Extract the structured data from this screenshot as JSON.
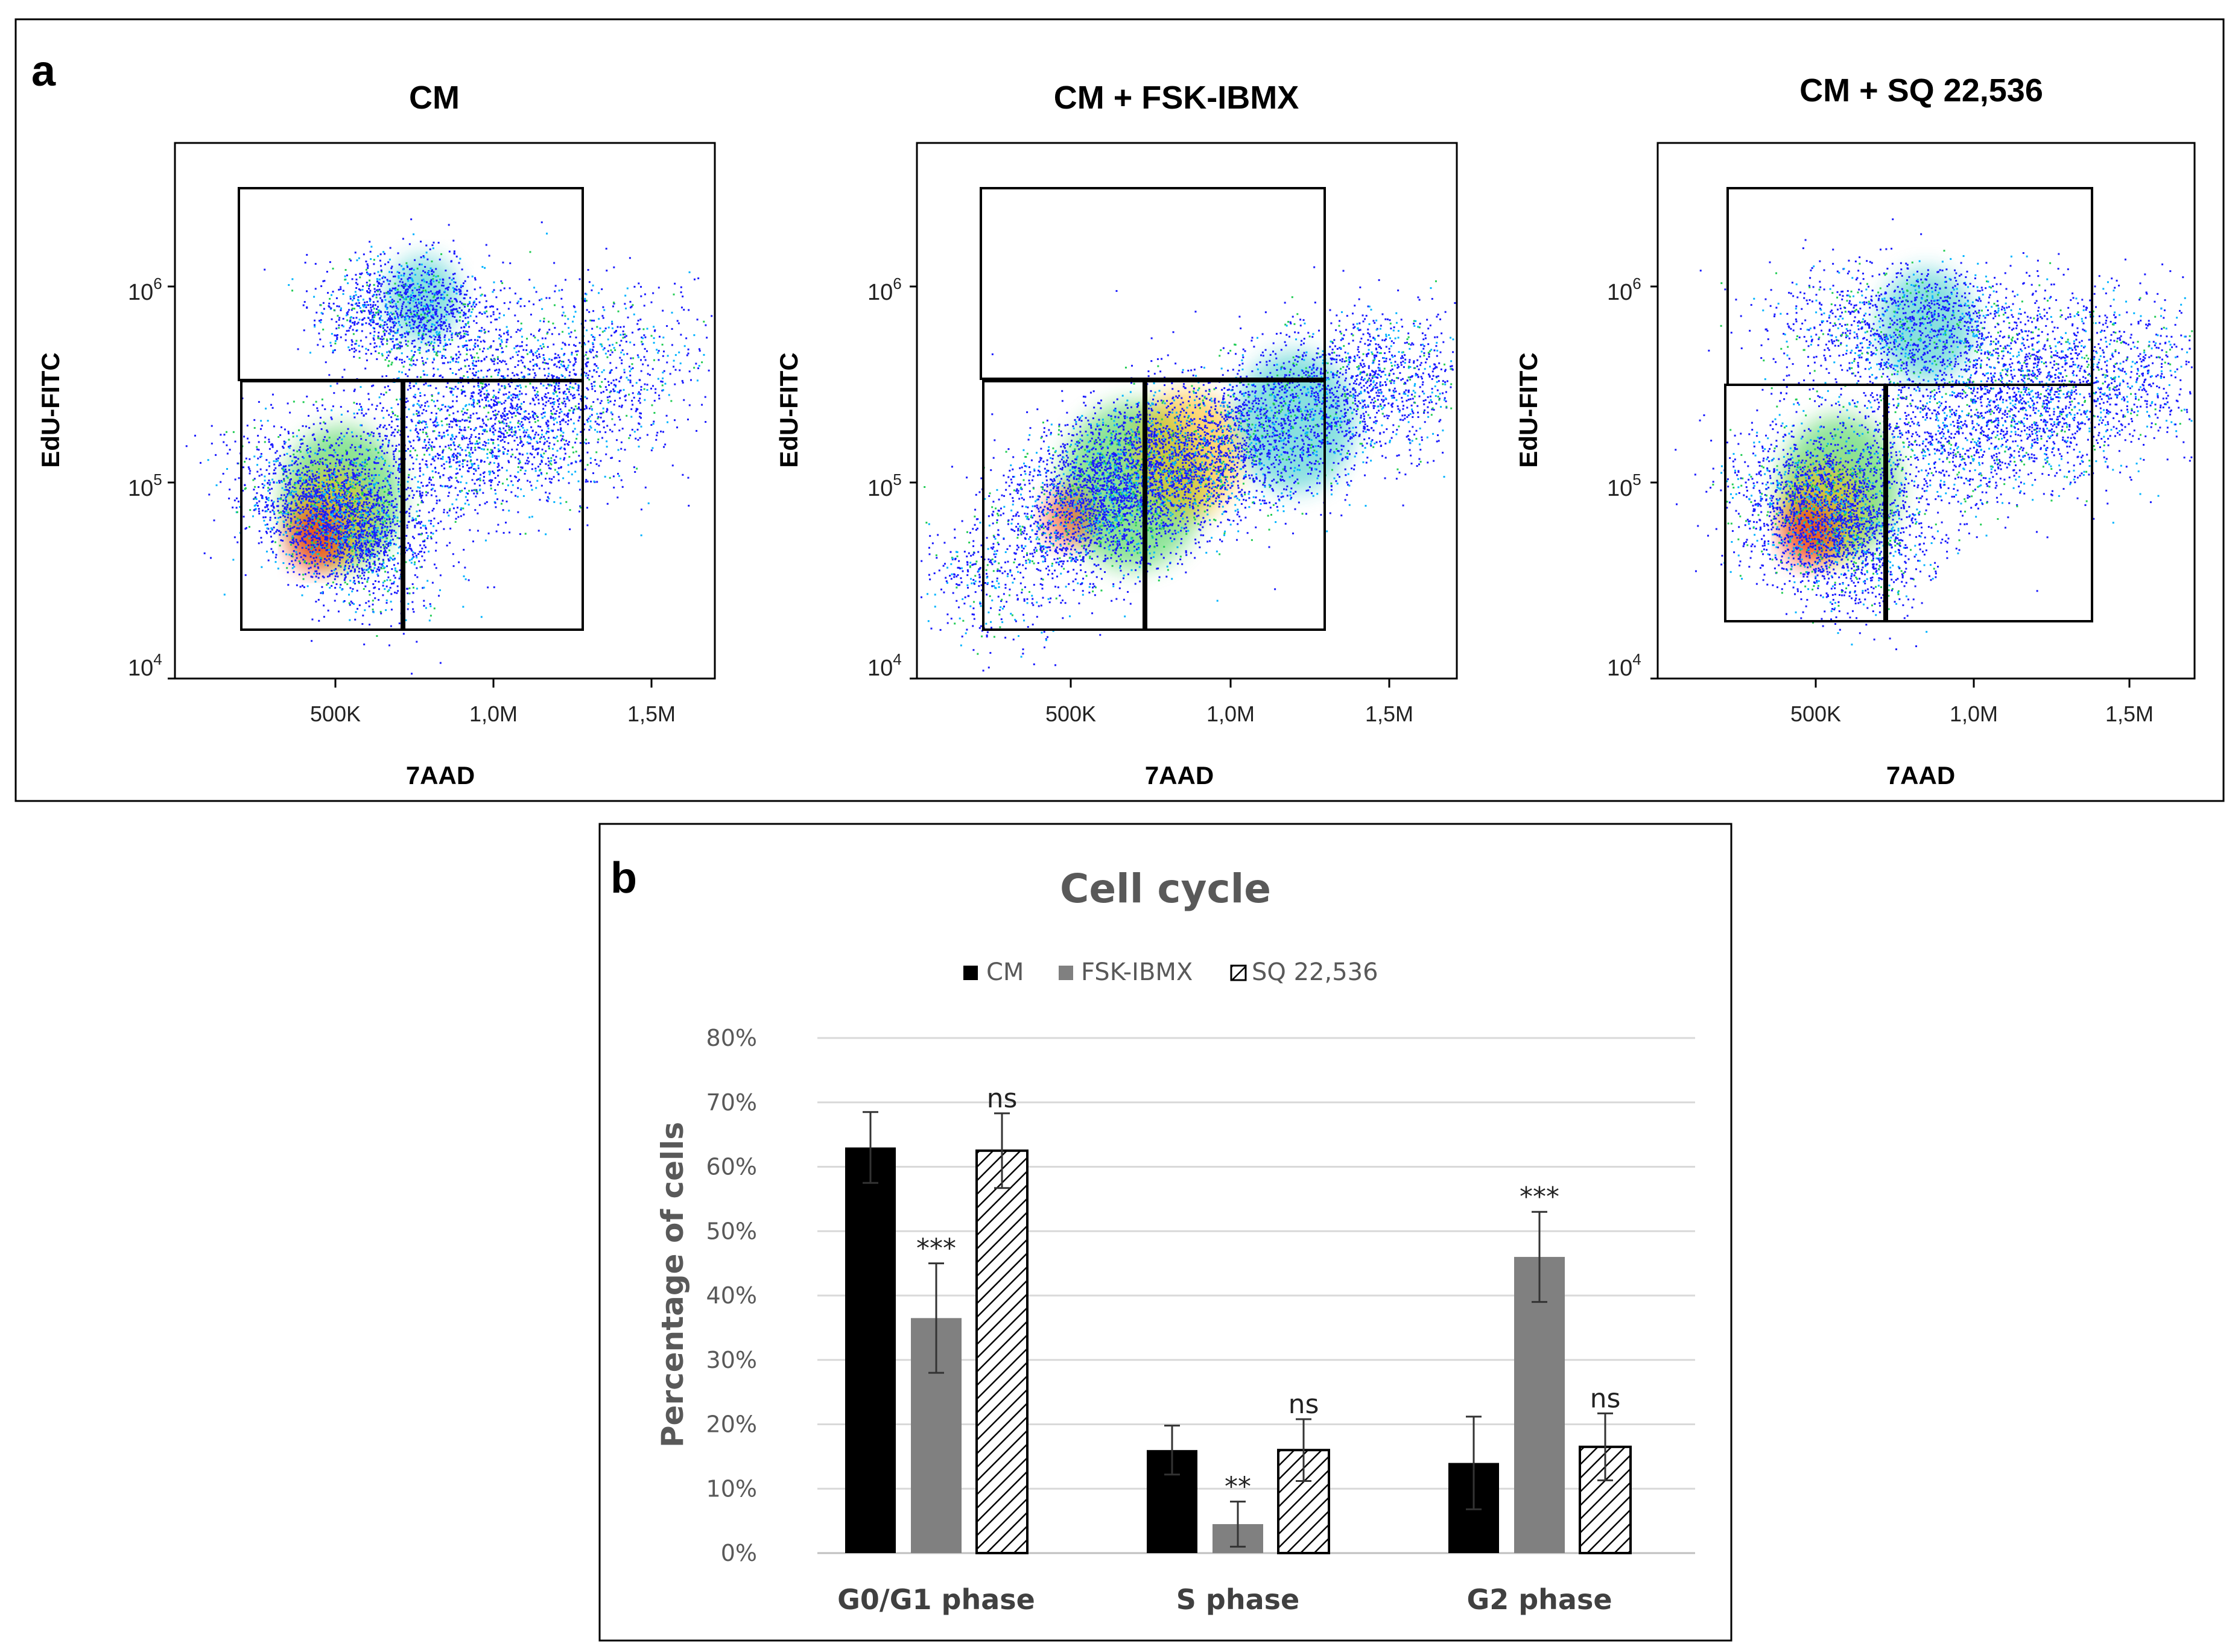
{
  "panel_a": {
    "letter": "a",
    "x_axis_label": "7AAD",
    "y_axis_label": "EdU-FITC",
    "x_ticks": [
      "500K",
      "1,0M",
      "1,5M"
    ],
    "y_ticks": [
      {
        "base": "10",
        "exp": "4"
      },
      {
        "base": "10",
        "exp": "5"
      },
      {
        "base": "10",
        "exp": "6"
      }
    ],
    "plots": [
      {
        "title": "CM"
      },
      {
        "title": "CM + FSK-IBMX"
      },
      {
        "title": "CM + SQ 22,536"
      }
    ]
  },
  "chart_data": {
    "type": "bar",
    "panel_letter": "b",
    "title": "Cell cycle",
    "xlabel": "",
    "ylabel": "Percentage of cells",
    "ylim": [
      0,
      80
    ],
    "ytick_labels": [
      "0%",
      "10%",
      "20%",
      "30%",
      "40%",
      "50%",
      "60%",
      "70%",
      "80%"
    ],
    "categories": [
      "G0/G1 phase",
      "S phase",
      "G2 phase"
    ],
    "series": [
      {
        "name": "CM",
        "style": "solid-black",
        "values": [
          63,
          16,
          14
        ],
        "errors": [
          5.5,
          3.8,
          7.2
        ],
        "annotations": [
          "",
          "",
          ""
        ]
      },
      {
        "name": "FSK-IBMX",
        "style": "solid-gray",
        "values": [
          36.5,
          4.5,
          46
        ],
        "errors": [
          8.5,
          3.5,
          7
        ],
        "annotations": [
          "***",
          "**",
          "***"
        ]
      },
      {
        "name": "SQ 22,536",
        "style": "hatched",
        "values": [
          62.5,
          16,
          16.5
        ],
        "errors": [
          5.8,
          4.8,
          5.2
        ],
        "annotations": [
          "ns",
          "ns",
          "ns"
        ]
      }
    ],
    "legend_position": "top-center",
    "grid": true,
    "colors": {
      "CM": "#000000",
      "FSK-IBMX": "#808080",
      "SQ 22,536": "#ffffff",
      "gridline": "#d9d9d9",
      "axis_text": "#595959"
    }
  }
}
